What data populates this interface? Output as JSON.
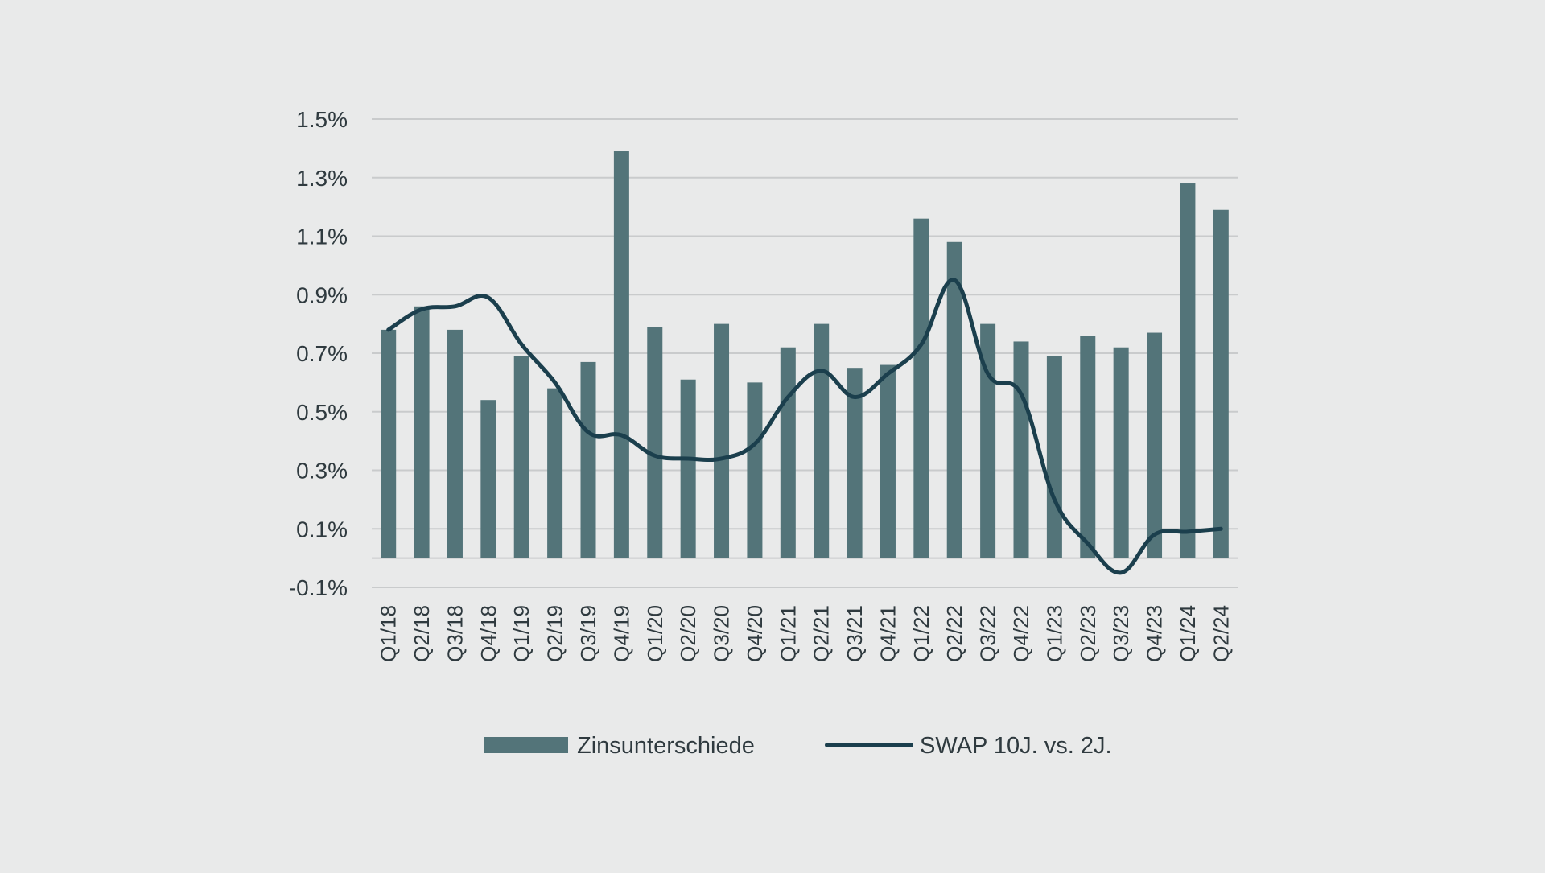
{
  "colors": {
    "background": "#e9eaea",
    "bar": "#537479",
    "line": "#1b3f4d",
    "grid": "#c9cbcc",
    "text": "#2f3a3f"
  },
  "chart_data": {
    "type": "bar",
    "title": "",
    "xlabel": "",
    "ylabel": "",
    "ylim": [
      -0.1,
      1.5
    ],
    "yticks": [
      "1.5%",
      "1.3%",
      "1.1%",
      "0.9%",
      "0.7%",
      "0.5%",
      "0.3%",
      "0.1%",
      "-0.1%"
    ],
    "ytick_values": [
      1.5,
      1.3,
      1.1,
      0.9,
      0.7,
      0.5,
      0.3,
      0.1,
      -0.1
    ],
    "grid": true,
    "legend_position": "bottom",
    "categories": [
      "Q1/18",
      "Q2/18",
      "Q3/18",
      "Q4/18",
      "Q1/19",
      "Q2/19",
      "Q3/19",
      "Q4/19",
      "Q1/20",
      "Q2/20",
      "Q3/20",
      "Q4/20",
      "Q1/21",
      "Q2/21",
      "Q3/21",
      "Q4/21",
      "Q1/22",
      "Q2/22",
      "Q3/22",
      "Q4/22",
      "Q1/23",
      "Q2/23",
      "Q3/23",
      "Q4/23",
      "Q1/24",
      "Q2/24"
    ],
    "series": [
      {
        "name": "Zinsunterschiede",
        "type": "bar",
        "values": [
          0.78,
          0.86,
          0.78,
          0.54,
          0.69,
          0.58,
          0.67,
          1.39,
          0.79,
          0.61,
          0.8,
          0.6,
          0.72,
          0.8,
          0.65,
          0.66,
          1.16,
          1.08,
          0.8,
          0.74,
          0.69,
          0.76,
          0.72,
          0.77,
          1.28,
          1.19
        ]
      },
      {
        "name": "SWAP 10J. vs. 2J.",
        "type": "line",
        "values": [
          0.78,
          0.85,
          0.86,
          0.89,
          0.73,
          0.6,
          0.43,
          0.42,
          0.35,
          0.34,
          0.34,
          0.39,
          0.55,
          0.64,
          0.55,
          0.63,
          0.73,
          0.95,
          0.63,
          0.56,
          0.2,
          0.05,
          -0.05,
          0.08,
          0.09,
          0.1
        ]
      }
    ]
  }
}
